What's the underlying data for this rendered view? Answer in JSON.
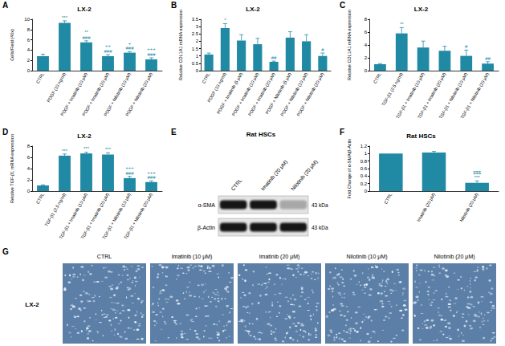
{
  "chart_data": [
    {
      "panel_label": "A",
      "type": "bar",
      "title": "LX-2",
      "ylabel": "Cells/Field (40x)",
      "categories": [
        "CTRL",
        "PDGF (10 ng/ml)",
        "PDGF + Imatinib (10 μM)",
        "PDGF + Imatinib (20 μM)",
        "PDGF + Nilotinib (10 μM)",
        "PDGF + Nilotinib (20 μM)"
      ],
      "values": [
        2.8,
        9.3,
        5.5,
        2.8,
        3.5,
        2.2
      ],
      "errors": [
        0.4,
        0.4,
        0.3,
        0.3,
        0.2,
        0.3
      ],
      "annotations": [
        [],
        [
          "***"
        ],
        [
          "**",
          "###"
        ],
        [
          "++",
          "###"
        ],
        [
          "+",
          "###"
        ],
        [
          "+++",
          "###"
        ]
      ],
      "color": "#2089a4",
      "ylim": [
        0,
        10
      ],
      "yticks": [
        0,
        2,
        4,
        6,
        8,
        10
      ],
      "grid": false
    },
    {
      "panel_label": "B",
      "type": "bar",
      "title": "LX-2",
      "ylabel": "Relative COL1A1 mRNA expression",
      "categories": [
        "CTRL",
        "PDGF (10 ng/ml)",
        "PDGF + Imatinib (5 μM)",
        "PDGF + Imatinib (10 μM)",
        "PDGF + Imatinib (20 μM)",
        "PDGF + Nilotinib (5 μM)",
        "PDGF + Nilotinib (10 μM)",
        "PDGF + Nilotinib (20 μM)"
      ],
      "values": [
        1.1,
        2.9,
        2.05,
        1.8,
        0.6,
        2.25,
        2.0,
        1.0
      ],
      "errors": [
        0.1,
        0.3,
        0.4,
        0.4,
        0.05,
        0.4,
        0.45,
        0.2
      ],
      "annotations": [
        [],
        [
          "*"
        ],
        [],
        [],
        [
          "##"
        ],
        [],
        [],
        [
          "#"
        ]
      ],
      "color": "#2089a4",
      "ylim": [
        0,
        3.5
      ],
      "yticks": [
        0,
        0.5,
        1,
        1.5,
        2,
        2.5,
        3,
        3.5
      ],
      "grid": false
    },
    {
      "panel_label": "C",
      "type": "bar",
      "title": "LX-2",
      "ylabel": "Relative COL1A1 mRNA expression",
      "categories": [
        "CTRL",
        "TGF-β1 (2.5 ng/ml)",
        "TGF-β1 + Imatinib (10 μM)",
        "TGF-β1 + Imatinib (20 μM)",
        "TGF-β1 + Nilotinib (10 μM)",
        "TGF-β1 + Nilotinib (20 μM)"
      ],
      "values": [
        1.0,
        5.8,
        3.6,
        3.1,
        2.3,
        1.1
      ],
      "errors": [
        0.1,
        0.9,
        1.0,
        0.7,
        0.9,
        0.3
      ],
      "annotations": [
        [],
        [
          "**"
        ],
        [],
        [],
        [
          "#"
        ],
        [
          "##"
        ]
      ],
      "color": "#2089a4",
      "ylim": [
        0,
        8
      ],
      "yticks": [
        0,
        2,
        4,
        6,
        8
      ],
      "grid": false
    },
    {
      "panel_label": "D",
      "type": "bar",
      "title": "LX-2",
      "ylabel": "Relative TGF-β1 mRNA expression",
      "categories": [
        "CTRL",
        "TGF-β1 (2.5 ng/ml)",
        "TGF-β1 + Imatinib (10 μM)",
        "TGF-β1 + Imatinib (20 μM)",
        "TGF-β1 + Nilotinib (10 μM)",
        "TGF-β1 + Nilotinib (20 μM)"
      ],
      "values": [
        1.0,
        6.3,
        6.7,
        6.5,
        2.3,
        1.6
      ],
      "errors": [
        0.1,
        0.3,
        0.2,
        0.3,
        0.3,
        0.2
      ],
      "annotations": [
        [],
        [
          "***"
        ],
        [
          "***"
        ],
        [
          "***"
        ],
        [
          "+++",
          "###"
        ],
        [
          "+++",
          "###"
        ]
      ],
      "color": "#2089a4",
      "ylim": [
        0,
        8
      ],
      "yticks": [
        0,
        2,
        4,
        6,
        8
      ],
      "grid": false
    },
    {
      "panel_label": "F",
      "type": "bar",
      "title": "Rat HSCs",
      "ylabel": "Fold Change of α-SMA/β-Actin",
      "categories": [
        "CTRL",
        "Imatinib (20 μM)",
        "Nilotinib (20 μM)"
      ],
      "values": [
        1.0,
        1.03,
        0.22
      ],
      "errors": [
        0,
        0.03,
        0.05
      ],
      "annotations": [
        [],
        [],
        [
          "$$$",
          "***"
        ]
      ],
      "color": "#2089a4",
      "ylim": [
        0,
        1.2
      ],
      "yticks": [
        0,
        0.2,
        0.4,
        0.6,
        0.8,
        1,
        1.2
      ],
      "grid": false
    }
  ],
  "blot": {
    "panel_label": "E",
    "title": "Rat HSCs",
    "lanes": [
      "CTRL",
      "Imatinib (20 μM)",
      "Nilotinib (20 μM)"
    ],
    "rows": [
      {
        "protein": "α-SMA",
        "size": "43 kDa",
        "intensities": [
          1,
          1,
          0.3
        ]
      },
      {
        "protein": "β-Actin",
        "size": "43 kDa",
        "intensities": [
          1,
          1,
          1
        ]
      }
    ]
  },
  "micrographs": {
    "panel_label": "G",
    "row_label": "LX-2",
    "images": [
      "CTRL",
      "Imatinib (10 μM)",
      "Imatinib (20 μM)",
      "Nilotinib (10 μM)",
      "Nilotinib (20 μM)"
    ]
  }
}
